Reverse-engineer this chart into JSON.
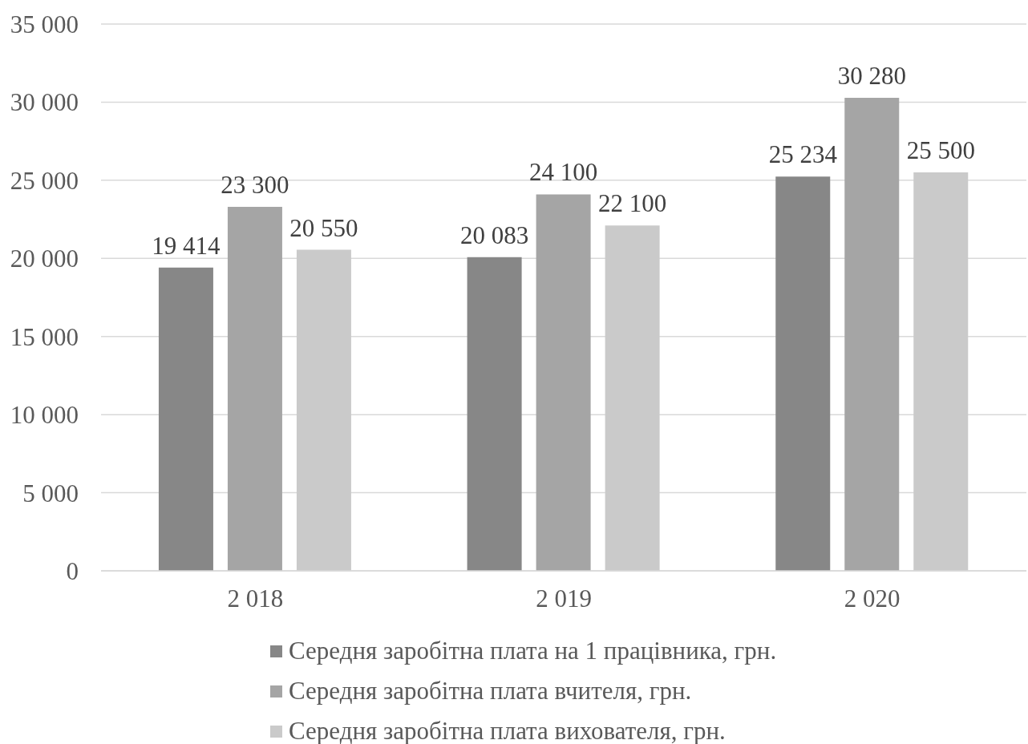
{
  "chart_data": {
    "type": "bar",
    "categories": [
      "2 018",
      "2 019",
      "2 020"
    ],
    "series": [
      {
        "name": "Середня заробітна плата на 1 працівника, грн.",
        "color": "#878787",
        "values": [
          19414,
          20083,
          25234
        ],
        "value_labels": [
          "19 414",
          "20 083",
          "25 234"
        ]
      },
      {
        "name": "Середня заробітна плата вчителя, грн.",
        "color": "#a5a5a5",
        "values": [
          23300,
          24100,
          30280
        ],
        "value_labels": [
          "23 300",
          "24 100",
          "30 280"
        ]
      },
      {
        "name": "Середня заробітна плата вихователя, грн.",
        "color": "#cacaca",
        "values": [
          20550,
          22100,
          25500
        ],
        "value_labels": [
          "20 550",
          "22 100",
          "25 500"
        ]
      }
    ],
    "ylim": [
      0,
      35000
    ],
    "yticks": [
      0,
      {
        "value": 5000,
        "label": "5 000"
      },
      {
        "value": 10000,
        "label": "10 000"
      },
      {
        "value": 15000,
        "label": "15 000"
      },
      {
        "value": 20000,
        "label": "20 000"
      },
      {
        "value": 25000,
        "label": "25 000"
      },
      {
        "value": 30000,
        "label": "30 000"
      },
      {
        "value": 35000,
        "label": "35 000"
      }
    ],
    "grid": "y",
    "legend": "bottom"
  }
}
